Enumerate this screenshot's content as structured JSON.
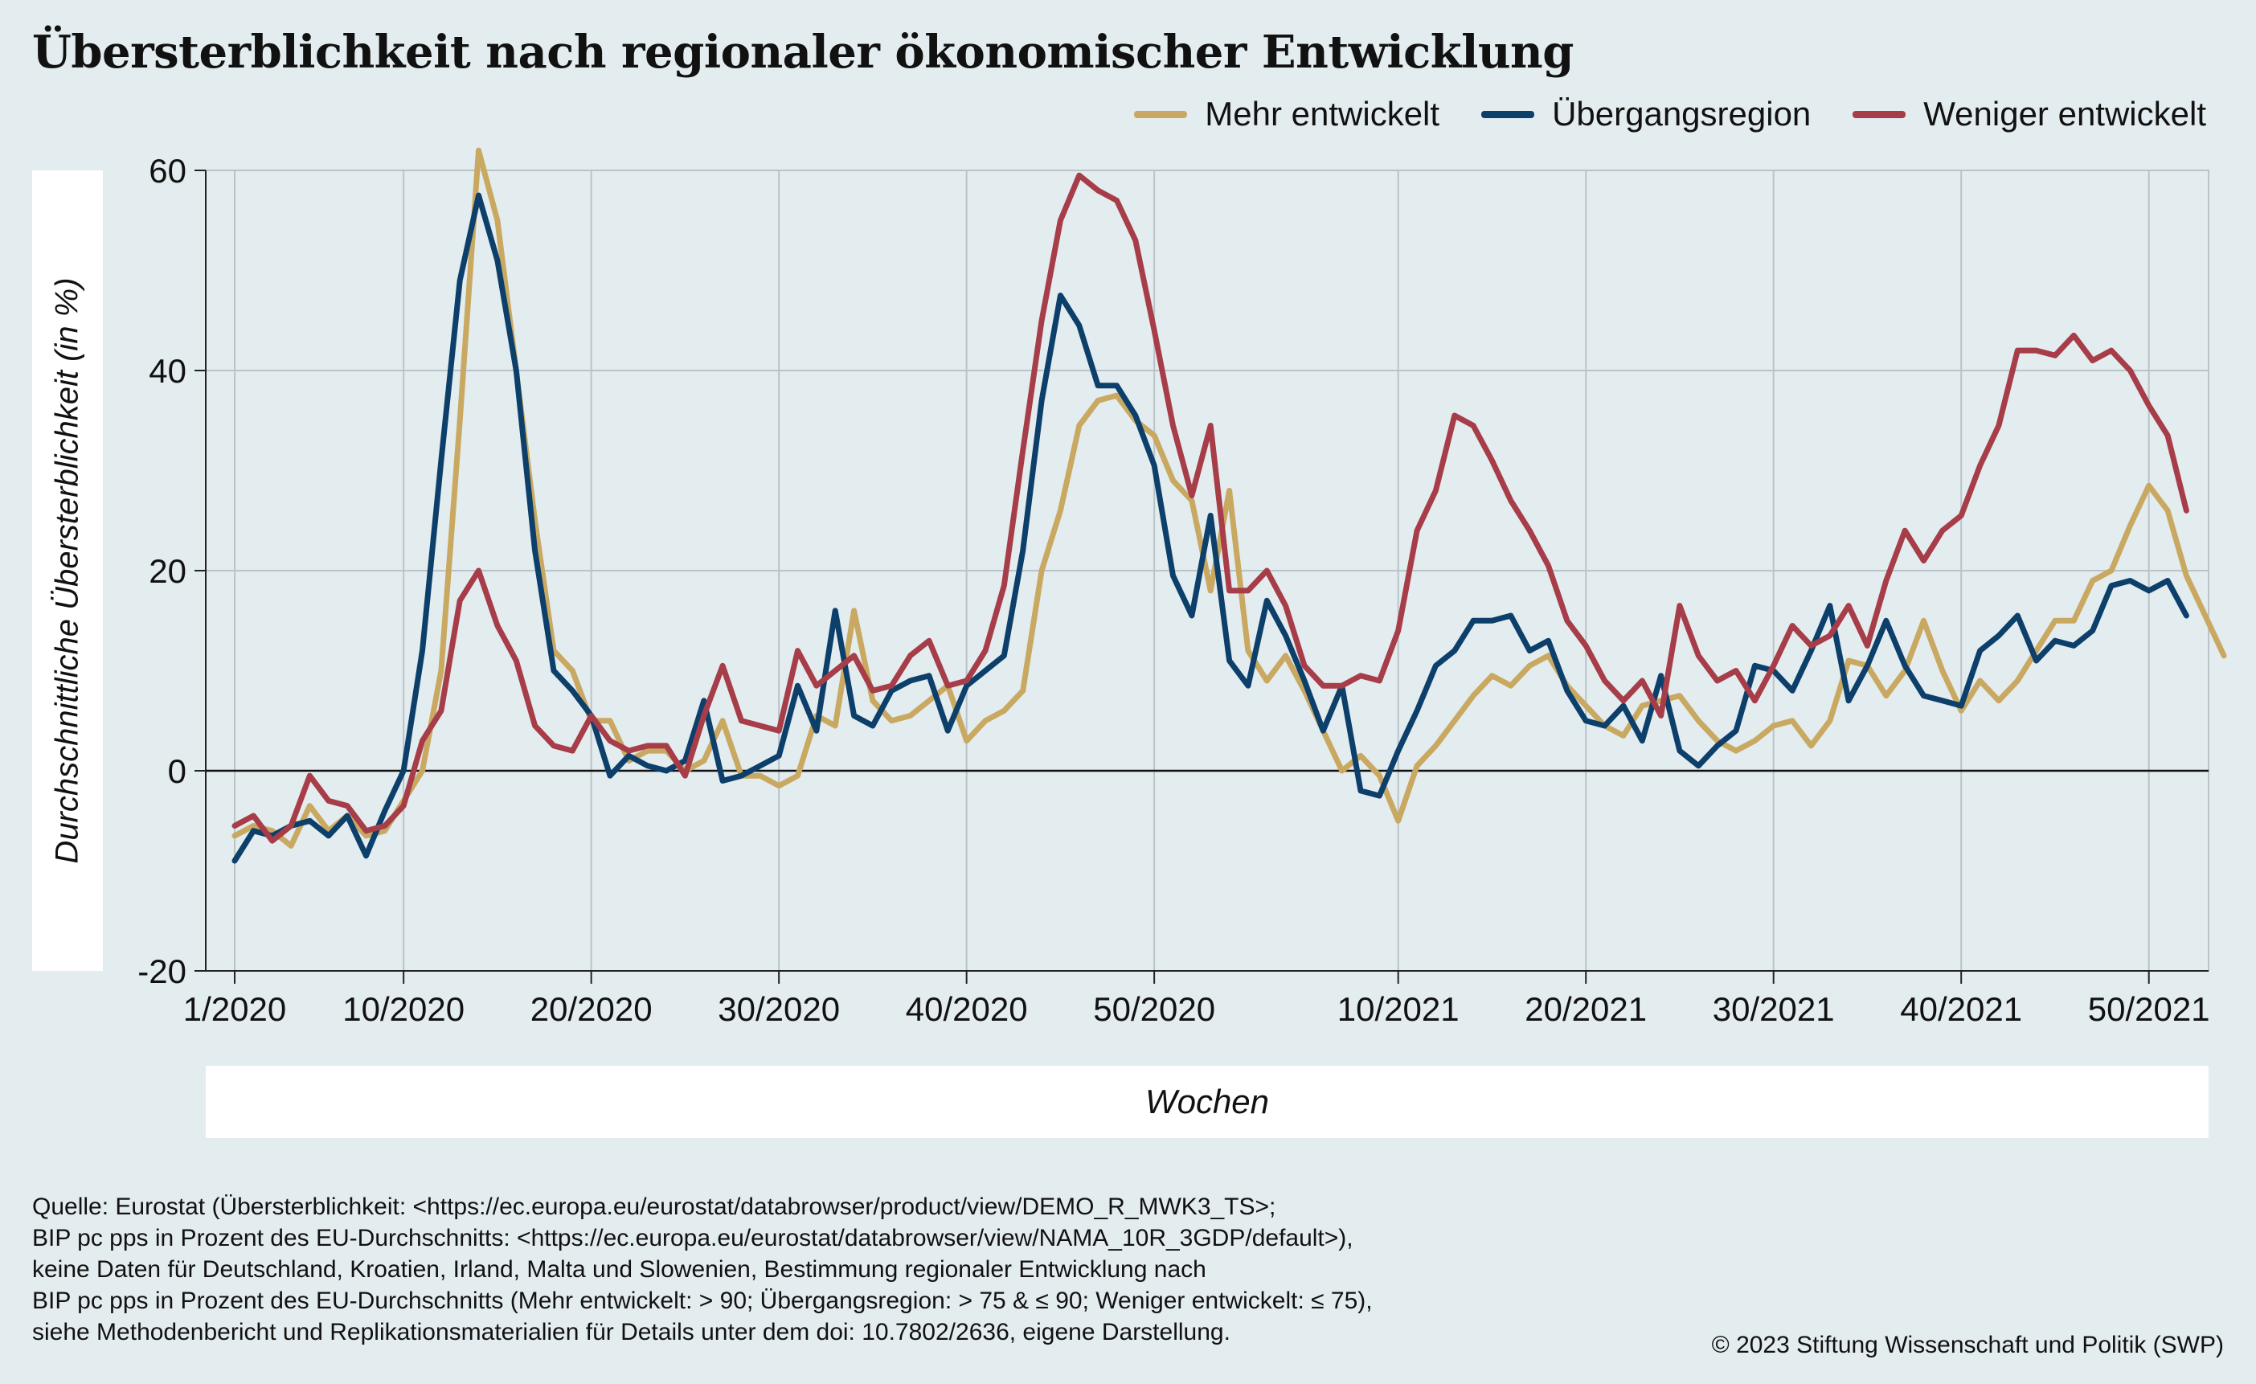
{
  "chart_data": {
    "type": "line",
    "title": "Übersterblichkeit nach regionaler ökonomischer Entwicklung",
    "xlabel": "Wochen",
    "ylabel": "Durchschnittliche Übersterblichkeit (in %)",
    "ylim": [
      -20,
      60
    ],
    "yticks": [
      60,
      40,
      20,
      0,
      -20
    ],
    "ytick_labels": [
      "60",
      "40",
      "20",
      "0",
      "-20"
    ],
    "xtick_positions": [
      0,
      9,
      19,
      29,
      39,
      49,
      62,
      72,
      82,
      92,
      102
    ],
    "xtick_labels": [
      "1/2020",
      "10/2020",
      "20/2020",
      "30/2020",
      "40/2020",
      "50/2020",
      "10/2021",
      "20/2021",
      "30/2021",
      "40/2021",
      "50/2021"
    ],
    "grid": true,
    "legend_position": "top-right",
    "series": [
      {
        "name": "Mehr entwickelt",
        "color": "#c9a961",
        "values": [
          -6.5,
          -5.5,
          -6,
          -7.5,
          -3.5,
          -6,
          -4.5,
          -6.5,
          -6,
          -3,
          0,
          10,
          35,
          62,
          55,
          40,
          25,
          12,
          10,
          5,
          5,
          1,
          2,
          2,
          0,
          1,
          5,
          -0.5,
          -0.5,
          -1.5,
          -0.5,
          5.5,
          4.5,
          16,
          7,
          5,
          5.5,
          7,
          8.5,
          3,
          5,
          6,
          8,
          20,
          26,
          34.5,
          37,
          37.5,
          35,
          33.5,
          29,
          27,
          18,
          28,
          12,
          9,
          11.5,
          8,
          4,
          0,
          1.5,
          -0.5,
          -5,
          0.5,
          2.5,
          5,
          7.5,
          9.5,
          8.5,
          10.5,
          11.5,
          8.5,
          6.5,
          4.5,
          3.5,
          6.5,
          7,
          7.5,
          5,
          3,
          2,
          3,
          4.5,
          5,
          2.5,
          5,
          11,
          10.5,
          7.5,
          10,
          15,
          10,
          6,
          9,
          7,
          9,
          12,
          15,
          15,
          19,
          20,
          24.5,
          28.5,
          26,
          19.5,
          15.5,
          11.5
        ]
      },
      {
        "name": "Übergangsregion",
        "color": "#0d3f6b",
        "values": [
          -9,
          -6,
          -6.5,
          -5.5,
          -5,
          -6.5,
          -4.5,
          -8.5,
          -4,
          0,
          12,
          31,
          49,
          57.5,
          51,
          40,
          22,
          10,
          8,
          5.5,
          -0.5,
          1.5,
          0.5,
          0,
          1,
          7,
          -1,
          -0.5,
          0.5,
          1.5,
          8.5,
          4,
          16,
          5.5,
          4.5,
          8,
          9,
          9.5,
          4,
          8.5,
          10,
          11.5,
          22,
          37,
          47.5,
          44.5,
          38.5,
          38.5,
          35.5,
          30.5,
          19.5,
          15.5,
          25.5,
          11,
          8.5,
          17,
          13.5,
          9,
          4,
          8.5,
          -2,
          -2.5,
          2,
          6,
          10.5,
          12,
          15,
          15,
          15.5,
          12,
          13,
          8,
          5,
          4.5,
          6.5,
          3,
          9.5,
          2,
          0.5,
          2.5,
          4,
          10.5,
          10,
          8,
          12,
          16.5,
          7,
          10.5,
          15,
          10.5,
          7.5,
          7,
          6.5,
          12,
          13.5,
          15.5,
          11,
          13,
          12.5,
          14,
          18.5,
          19,
          18,
          19,
          15.5
        ]
      },
      {
        "name": "Weniger entwickelt",
        "color": "#a63d48",
        "values": [
          -5.5,
          -4.5,
          -7,
          -5.5,
          -0.5,
          -3,
          -3.5,
          -6,
          -5.5,
          -3.5,
          3,
          6,
          17,
          20,
          14.5,
          11,
          4.5,
          2.5,
          2,
          5.5,
          3,
          2,
          2.5,
          2.5,
          -0.5,
          5.5,
          10.5,
          5,
          4.5,
          4,
          12,
          8.5,
          10,
          11.5,
          8,
          8.5,
          11.5,
          13,
          8.5,
          9,
          12,
          18.5,
          32,
          45,
          55,
          59.5,
          58,
          57,
          53,
          44,
          34.5,
          27.5,
          34.5,
          18,
          18,
          20,
          16.5,
          10.5,
          8.5,
          8.5,
          9.5,
          9,
          14,
          24,
          28,
          35.5,
          34.5,
          31,
          27,
          24,
          20.5,
          15,
          12.5,
          9,
          7,
          9,
          5.5,
          16.5,
          11.5,
          9,
          10,
          7,
          10.5,
          14.5,
          12.5,
          13.5,
          16.5,
          12.5,
          19,
          24,
          21,
          24,
          25.5,
          30.5,
          34.5,
          42,
          42,
          41.5,
          43.5,
          41,
          42,
          40,
          36.5,
          33.5,
          26
        ]
      }
    ]
  },
  "source_lines": [
    "Quelle: Eurostat (Übersterblichkeit: <https://ec.europa.eu/eurostat/databrowser/product/view/DEMO_R_MWK3_TS>;",
    "BIP pc pps in Prozent des EU-Durchschnitts: <https://ec.europa.eu/eurostat/databrowser/view/NAMA_10R_3GDP/default>),",
    "keine Daten für Deutschland, Kroatien, Irland, Malta und Slowenien, Bestimmung regionaler Entwicklung nach",
    "BIP pc pps in Prozent des EU-Durchschnitts (Mehr entwickelt: > 90; Übergangsregion: > 75 & ≤ 90; Weniger entwickelt: ≤ 75),",
    "siehe Methodenbericht und Replikationsmaterialien für Details unter dem doi: 10.7802/2636, eigene Darstellung."
  ],
  "copyright": "© 2023 Stiftung Wissenschaft und Politik (SWP)"
}
